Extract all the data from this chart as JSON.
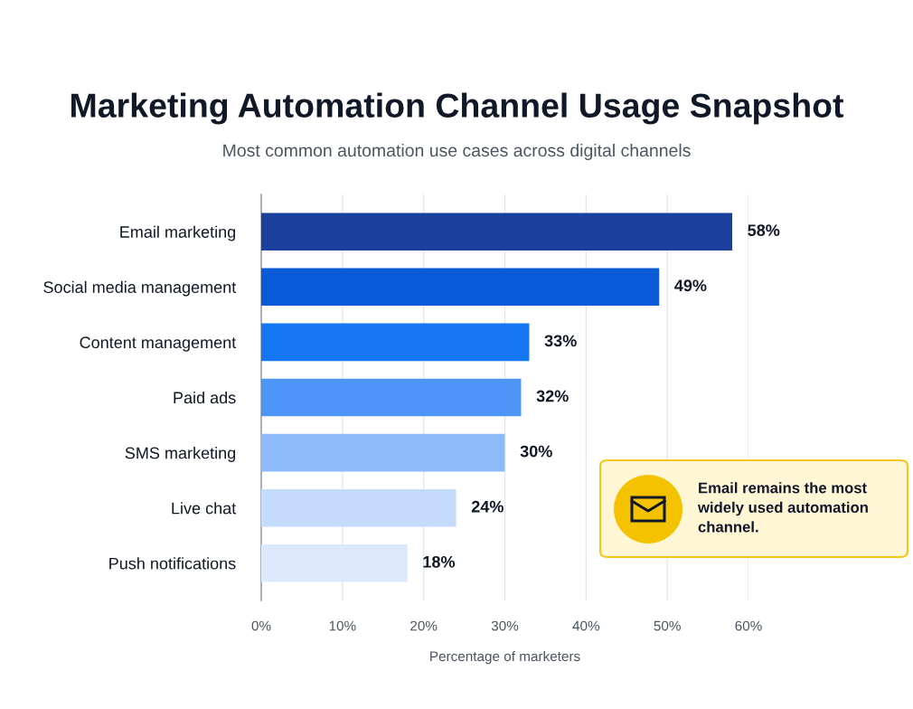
{
  "chart_data": {
    "type": "bar",
    "orientation": "horizontal",
    "title": "Marketing Automation Channel Usage Snapshot",
    "subtitle": "Most common automation use cases across digital channels",
    "xlabel": "Percentage of marketers",
    "categories": [
      "Email marketing",
      "Social media management",
      "Content management",
      "Paid ads",
      "SMS marketing",
      "Live chat",
      "Push notifications"
    ],
    "values": [
      58,
      49,
      33,
      32,
      30,
      24,
      18
    ],
    "colors": [
      "#1a3f9c",
      "#0a5ad8",
      "#1677f5",
      "#4d96f7",
      "#8dbbfa",
      "#c4dbfc",
      "#dce9fd"
    ],
    "value_labels": [
      "58%",
      "49%",
      "33%",
      "32%",
      "30%",
      "24%",
      "18%"
    ],
    "xlim": [
      0,
      60
    ],
    "xticks": [
      {
        "value": 0,
        "label": "0%"
      },
      {
        "value": 10,
        "label": "10%"
      },
      {
        "value": 20,
        "label": "20%"
      },
      {
        "value": 30,
        "label": "30%"
      },
      {
        "value": 40,
        "label": "40%"
      },
      {
        "value": 50,
        "label": "50%"
      },
      {
        "value": 60,
        "label": "60%"
      }
    ],
    "grid": "x",
    "legend": false,
    "annotations": [
      "Email remains the most widely used automation channel."
    ]
  }
}
